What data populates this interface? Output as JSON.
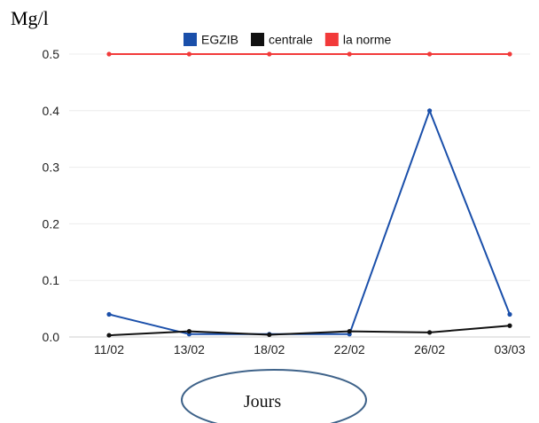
{
  "chart_data": {
    "type": "line",
    "title": "",
    "ylabel": "Mg/l",
    "xlabel": "Jours",
    "categories": [
      "11/02",
      "13/02",
      "18/02",
      "22/02",
      "26/02",
      "03/03"
    ],
    "ylim": [
      0,
      0.5
    ],
    "yticks": [
      "0.0",
      "0.1",
      "0.2",
      "0.3",
      "0.4",
      "0.5"
    ],
    "grid": "horizontal",
    "legend_position": "top-center",
    "series": [
      {
        "name": "EGZIB",
        "color": "#1a4faa",
        "values": [
          0.04,
          0.005,
          0.005,
          0.005,
          0.4,
          0.04
        ]
      },
      {
        "name": "centrale",
        "color": "#111111",
        "values": [
          0.003,
          0.01,
          0.004,
          0.01,
          0.008,
          0.02
        ]
      },
      {
        "name": "la norme",
        "color": "#f23a3a",
        "values": [
          0.5,
          0.5,
          0.5,
          0.5,
          0.5,
          0.5
        ]
      }
    ]
  }
}
